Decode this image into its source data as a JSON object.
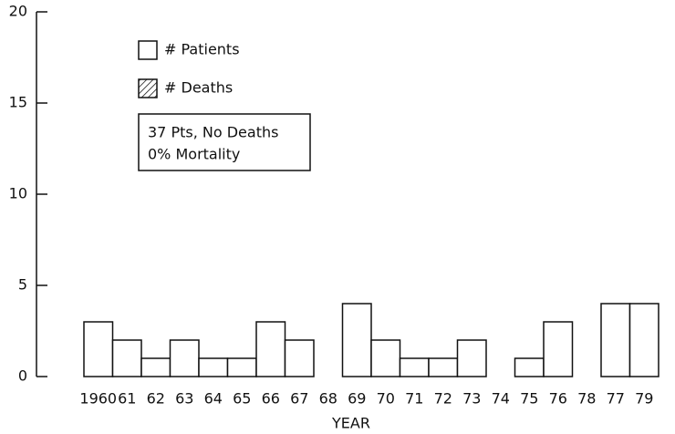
{
  "chart_data": {
    "type": "bar",
    "x_label": "YEAR",
    "categories": [
      "1960",
      "61",
      "62",
      "63",
      "64",
      "65",
      "66",
      "67",
      "68",
      "69",
      "70",
      "71",
      "72",
      "73",
      "74",
      "75",
      "76",
      "78",
      "77",
      "79"
    ],
    "series": [
      {
        "name": "# Patients",
        "color": "#ffffff",
        "values": [
          3,
          2,
          1,
          2,
          1,
          1,
          3,
          2,
          0,
          4,
          2,
          1,
          1,
          2,
          0,
          1,
          3,
          0,
          4,
          4
        ]
      },
      {
        "name": "# Deaths",
        "color": "hatched",
        "values": [
          0,
          0,
          0,
          0,
          0,
          0,
          0,
          0,
          0,
          0,
          0,
          0,
          0,
          0,
          0,
          0,
          0,
          0,
          0,
          0
        ]
      }
    ],
    "annotation": [
      "37 Pts, No Deaths",
      "0% Mortality"
    ],
    "ylim": [
      0,
      20
    ],
    "yticks": [
      0,
      5,
      10,
      15,
      20
    ]
  }
}
